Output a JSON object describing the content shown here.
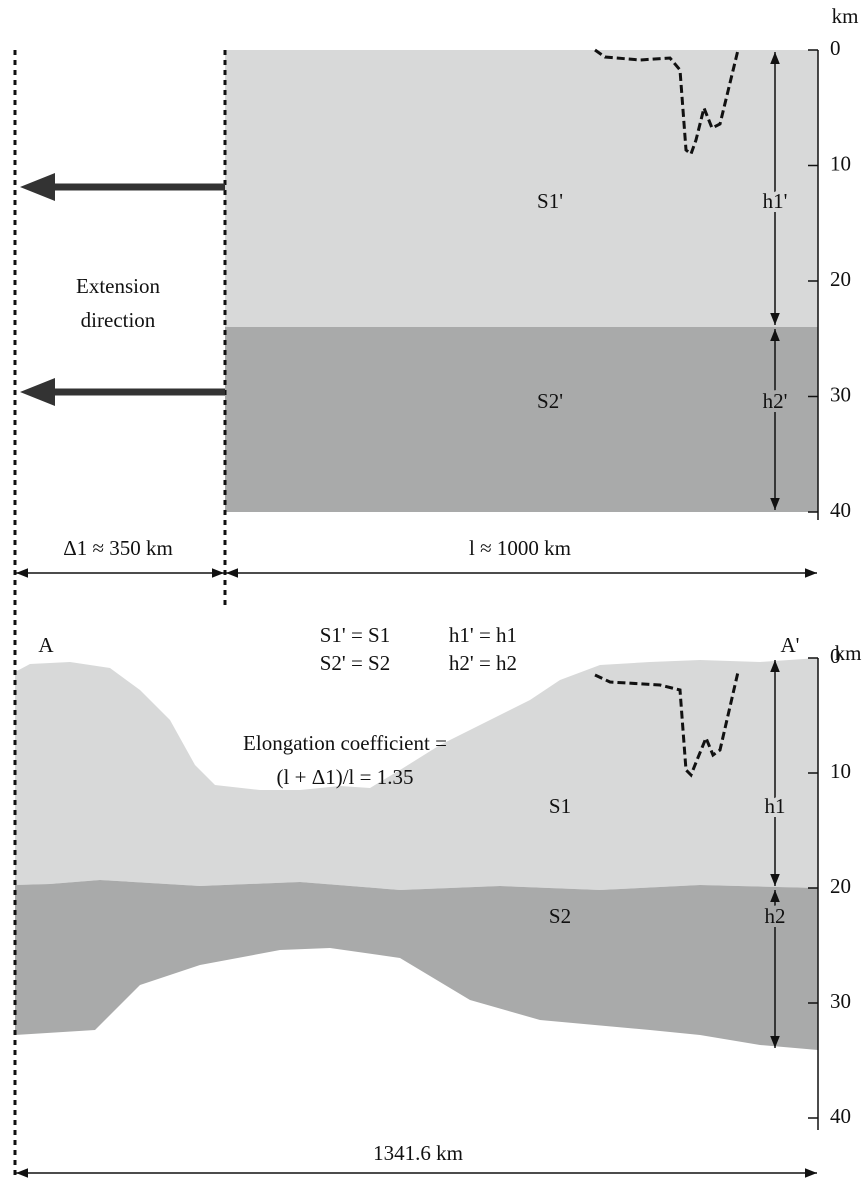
{
  "top_panel": {
    "unit": "km",
    "ticks": [
      "0",
      "10",
      "20",
      "30",
      "40"
    ],
    "upper_layer": "S1'",
    "lower_layer": "S2'",
    "upper_thickness": "h1'",
    "lower_thickness": "h2'",
    "arrow_label": [
      "Extension",
      "direction"
    ]
  },
  "widths": {
    "extension": "Δ1 ≈ 350 km",
    "original": "l ≈ 1000 km"
  },
  "profile": {
    "start": "A",
    "end": "A'"
  },
  "equalities": {
    "line1": [
      "S1' = S1",
      "h1' = h1"
    ],
    "line2": [
      "S2' = S2",
      "h2' = h2"
    ]
  },
  "elongation": {
    "line1": "Elongation coefficient =",
    "line2": "(l + Δ1)/l = 1.35"
  },
  "bottom_panel": {
    "unit": "km",
    "ticks": [
      "0",
      "10",
      "20",
      "30",
      "40"
    ],
    "upper_layer": "S1",
    "lower_layer": "S2",
    "upper_thickness": "h1",
    "lower_thickness": "h2",
    "total_length": "1341.6 km"
  }
}
